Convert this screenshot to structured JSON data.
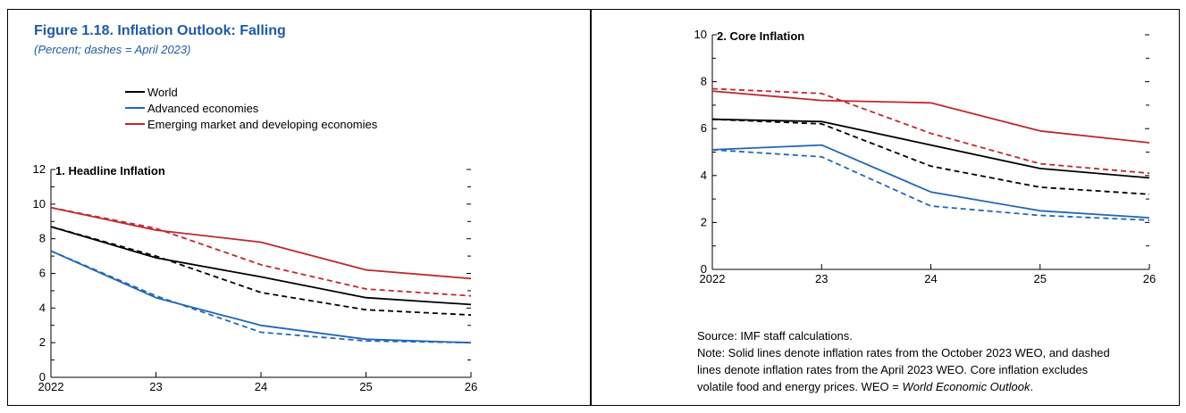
{
  "figure": {
    "title": "Figure 1.18. Inflation Outlook: Falling",
    "subtitle": "(Percent; dashes = April 2023)"
  },
  "legend": [
    {
      "label": "World",
      "color": "#000000"
    },
    {
      "label": "Advanced economies",
      "color": "#2166b8"
    },
    {
      "label": "Emerging market and developing economies",
      "color": "#c0272d"
    }
  ],
  "chart_data": [
    {
      "type": "line",
      "title": "1. Headline Inflation",
      "x": [
        "2022",
        "23",
        "24",
        "25",
        "26"
      ],
      "ylim": [
        0,
        12
      ],
      "yticks": [
        0,
        2,
        4,
        6,
        8,
        10,
        12
      ],
      "yticklabels": [
        "0",
        "2",
        "4",
        "6",
        "8",
        "10",
        "12"
      ],
      "series": [
        {
          "name": "World",
          "color": "#000000",
          "dashed": false,
          "values": [
            8.7,
            6.9,
            5.8,
            4.6,
            4.2
          ]
        },
        {
          "name": "Advanced economies",
          "color": "#2166b8",
          "dashed": false,
          "values": [
            7.3,
            4.6,
            3.0,
            2.2,
            2.0
          ]
        },
        {
          "name": "Emerging market and developing economies",
          "color": "#c0272d",
          "dashed": false,
          "values": [
            9.8,
            8.5,
            7.8,
            6.2,
            5.7
          ]
        },
        {
          "name": "World",
          "color": "#000000",
          "dashed": true,
          "values": [
            8.7,
            7.0,
            4.9,
            3.9,
            3.6
          ]
        },
        {
          "name": "Advanced economies",
          "color": "#2166b8",
          "dashed": true,
          "values": [
            7.3,
            4.7,
            2.6,
            2.1,
            2.0
          ]
        },
        {
          "name": "Emerging market and developing economies",
          "color": "#c0272d",
          "dashed": true,
          "values": [
            9.8,
            8.6,
            6.5,
            5.1,
            4.7
          ]
        }
      ]
    },
    {
      "type": "line",
      "title": "2. Core Inflation",
      "x": [
        "2022",
        "23",
        "24",
        "25",
        "26"
      ],
      "ylim": [
        0,
        10
      ],
      "yticks": [
        0,
        2,
        4,
        6,
        8,
        10
      ],
      "yticklabels": [
        "0",
        "2",
        "4",
        "6",
        "8",
        "10"
      ],
      "series": [
        {
          "name": "World",
          "color": "#000000",
          "dashed": false,
          "values": [
            6.4,
            6.3,
            5.3,
            4.3,
            3.9
          ]
        },
        {
          "name": "Advanced economies",
          "color": "#2166b8",
          "dashed": false,
          "values": [
            5.1,
            5.3,
            3.3,
            2.5,
            2.2
          ]
        },
        {
          "name": "Emerging market and developing economies",
          "color": "#c0272d",
          "dashed": false,
          "values": [
            7.6,
            7.2,
            7.1,
            5.9,
            5.4
          ]
        },
        {
          "name": "World",
          "color": "#000000",
          "dashed": true,
          "values": [
            6.4,
            6.2,
            4.4,
            3.5,
            3.2
          ]
        },
        {
          "name": "Advanced economies",
          "color": "#2166b8",
          "dashed": true,
          "values": [
            5.1,
            4.8,
            2.7,
            2.3,
            2.1
          ]
        },
        {
          "name": "Emerging market and developing economies",
          "color": "#c0272d",
          "dashed": true,
          "values": [
            7.7,
            7.5,
            5.8,
            4.5,
            4.1
          ]
        }
      ]
    }
  ],
  "footer": {
    "source": "Source: IMF staff calculations.",
    "note_lines": [
      "Note: Solid lines denote inflation rates from the October 2023 WEO, and dashed",
      "lines denote inflation rates from the April 2023 WEO. Core inflation excludes"
    ],
    "note_last_prefix": "volatile food and energy prices. WEO = ",
    "note_last_italic": "World Economic Outlook",
    "note_last_suffix": "."
  }
}
